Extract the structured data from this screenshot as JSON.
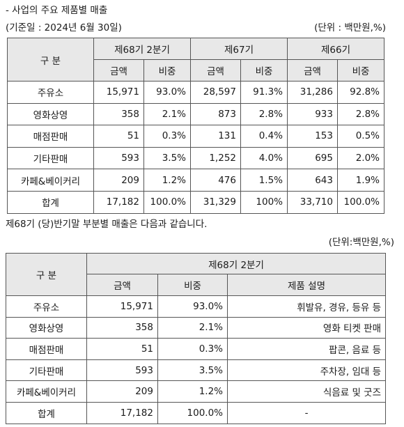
{
  "section_title": "- 사업의 주요 제품별 매출",
  "base_date": "(기준일 : 2024년  6월 30일)",
  "unit1": "(단위 : 백만원,%)",
  "table1": {
    "category_header": "구 분",
    "periods": [
      "제68기 2분기",
      "제67기",
      "제66기"
    ],
    "amount_label": "금액",
    "ratio_label": "비중",
    "rows": [
      {
        "name": "주유소",
        "v": [
          "15,971",
          "93.0%",
          "28,597",
          "91.3%",
          "31,286",
          "92.8%"
        ]
      },
      {
        "name": "영화상영",
        "v": [
          "358",
          "2.1%",
          "873",
          "2.8%",
          "933",
          "2.8%"
        ]
      },
      {
        "name": "매점판매",
        "v": [
          "51",
          "0.3%",
          "131",
          "0.4%",
          "153",
          "0.5%"
        ]
      },
      {
        "name": "기타판매",
        "v": [
          "593",
          "3.5%",
          "1,252",
          "4.0%",
          "695",
          "2.0%"
        ]
      },
      {
        "name": "카페&베이커리",
        "v": [
          "209",
          "1.2%",
          "476",
          "1.5%",
          "643",
          "1.9%"
        ]
      },
      {
        "name": "합계",
        "v": [
          "17,182",
          "100.0%",
          "31,329",
          "100%",
          "33,710",
          "100.0%"
        ]
      }
    ]
  },
  "paragraph": "제68기 (당)반기말 부분별 매출은 다음과 같습니다.",
  "unit2": "(단위:백만원,%)",
  "table2": {
    "category_header": "구 분",
    "period": "제68기 2분기",
    "amount_label": "금액",
    "ratio_label": "비중",
    "desc_label": "제품 설명",
    "rows": [
      {
        "name": "주유소",
        "amount": "15,971",
        "ratio": "93.0%",
        "desc": "휘발유, 경유, 등유 등"
      },
      {
        "name": "영화상영",
        "amount": "358",
        "ratio": "2.1%",
        "desc": "영화 티켓 판매"
      },
      {
        "name": "매점판매",
        "amount": "51",
        "ratio": "0.3%",
        "desc": "팝콘, 음료 등"
      },
      {
        "name": "기타판매",
        "amount": "593",
        "ratio": "3.5%",
        "desc": "주차장, 임대 등"
      },
      {
        "name": "카페&베이커리",
        "amount": "209",
        "ratio": "1.2%",
        "desc": "식음료 및 굿즈"
      },
      {
        "name": "합계",
        "amount": "17,182",
        "ratio": "100.0%",
        "desc": "-"
      }
    ]
  }
}
